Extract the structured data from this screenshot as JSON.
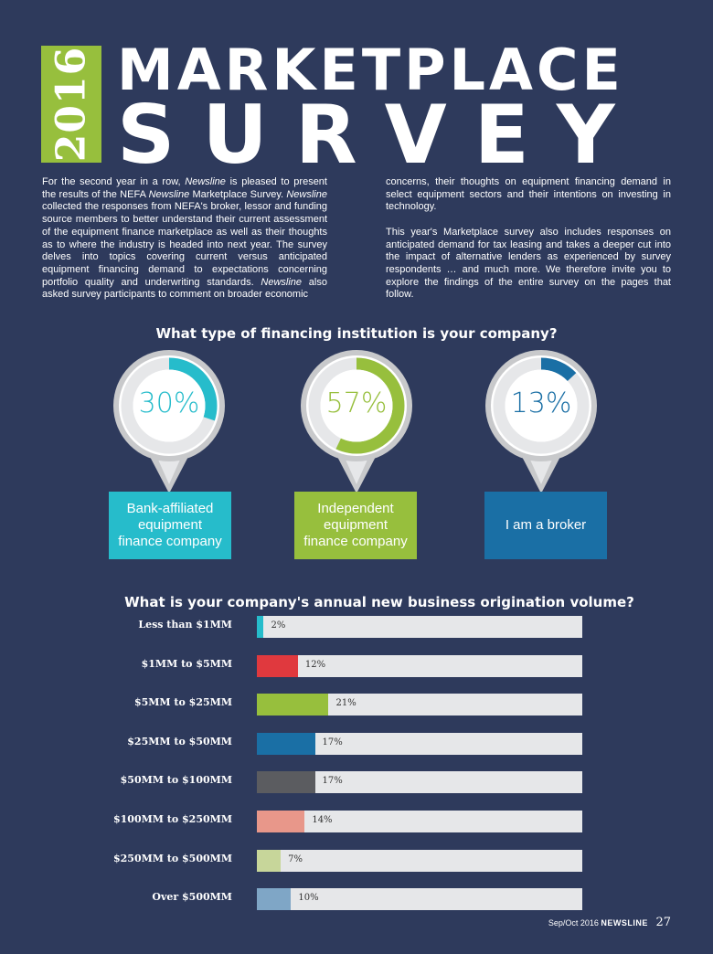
{
  "header": {
    "year": "2016",
    "title_line1": "MARKETPLACE",
    "title_line2": "SURVEY"
  },
  "intro": {
    "left": [
      {
        "t": "For the second year in a row, "
      },
      {
        "t": "Newsline",
        "i": true
      },
      {
        "t": " is pleased to present the results of the NEFA "
      },
      {
        "t": "Newsline",
        "i": true
      },
      {
        "t": " Marketplace Survey. "
      },
      {
        "t": "Newsline",
        "i": true
      },
      {
        "t": " collected the responses from NEFA's broker, lessor and funding source members to better understand their current assessment of the equipment finance marketplace as well as their thoughts as to where the industry is headed into next year. The survey delves into topics covering current versus anticipated equipment financing demand to expectations concerning portfolio quality and underwriting standards. "
      },
      {
        "t": "Newsline",
        "i": true
      },
      {
        "t": " also asked survey participants to comment on broader economic"
      }
    ],
    "right_p1": "concerns, their thoughts on equipment financing demand in select equipment sectors and their intentions on investing in technology.",
    "right_p2": "This year's Marketplace survey also includes responses on anticipated demand for tax leasing and takes a deeper cut into the impact of alternative lenders as experienced by survey respondents … and much more. We therefore invite you to explore the findings of the entire survey on the pages that follow."
  },
  "chart_data": [
    {
      "type": "pie",
      "title": "What type of financing institution is your company?",
      "categories": [
        "Bank-affiliated equipment finance company",
        "Independent equipment finance company",
        "I am a broker"
      ],
      "values": [
        30,
        57,
        13
      ],
      "labels": [
        "30%",
        "57%",
        "13%"
      ],
      "colors": [
        "#26bccb",
        "#97bf3d",
        "#1a6fa5"
      ]
    },
    {
      "type": "bar",
      "title": "What is your company's annual new business origination volume?",
      "categories": [
        "Less than $1MM",
        "$1MM to $5MM",
        "$5MM to $25MM",
        "$25MM to $50MM",
        "$50MM to $100MM",
        "$100MM to $250MM",
        "$250MM to $500MM",
        "Over $500MM"
      ],
      "values": [
        2,
        12,
        21,
        17,
        17,
        14,
        7,
        10
      ],
      "labels": [
        "2%",
        "12%",
        "21%",
        "17%",
        "17%",
        "14%",
        "7%",
        "10%"
      ],
      "colors": [
        "#26bccb",
        "#e0393e",
        "#97bf3d",
        "#1a6fa5",
        "#5b5c60",
        "#e8978a",
        "#c7d69a",
        "#7fa6c6"
      ],
      "ylim": [
        0,
        100
      ]
    }
  ],
  "footer": {
    "issue": "Sep/Oct 2016",
    "publication": "NEWSLINE",
    "page": "27"
  }
}
